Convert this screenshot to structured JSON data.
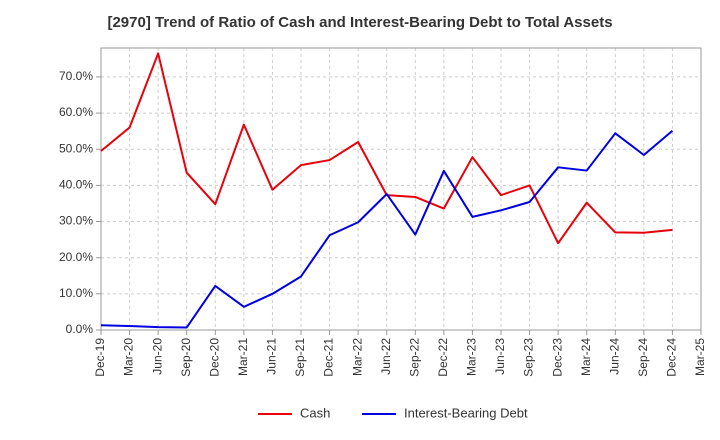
{
  "chart_data": {
    "type": "line",
    "title": "[2970]  Trend of Ratio of Cash and Interest-Bearing Debt to Total Assets",
    "x": [
      "Dec-19",
      "Mar-20",
      "Jun-20",
      "Sep-20",
      "Dec-20",
      "Mar-21",
      "Jun-21",
      "Sep-21",
      "Dec-21",
      "Mar-22",
      "Jun-22",
      "Sep-22",
      "Dec-22",
      "Mar-23",
      "Jun-23",
      "Sep-23",
      "Dec-23",
      "Mar-24",
      "Jun-24",
      "Sep-24",
      "Dec-24",
      "Mar-25"
    ],
    "xticks": [
      "Dec-19",
      "Mar-20",
      "Jun-20",
      "Sep-20",
      "Dec-20",
      "Mar-21",
      "Jun-21",
      "Sep-21",
      "Dec-21",
      "Mar-22",
      "Jun-22",
      "Sep-22",
      "Dec-22",
      "Mar-23",
      "Jun-23",
      "Sep-23",
      "Dec-23",
      "Mar-24",
      "Jun-24",
      "Sep-24",
      "Dec-24",
      "Mar-25"
    ],
    "yticks": [
      "0.0%",
      "10.0%",
      "20.0%",
      "30.0%",
      "40.0%",
      "50.0%",
      "60.0%",
      "70.0%"
    ],
    "ylim": [
      0,
      78
    ],
    "grid": true,
    "legend_position": "bottom",
    "series": [
      {
        "name": "Cash",
        "color": "#e8000b",
        "values": [
          49.5,
          56.0,
          76.5,
          43.5,
          34.8,
          56.8,
          38.8,
          45.6,
          47.0,
          52.0,
          37.3,
          36.8,
          33.6,
          47.8,
          37.3,
          40.0,
          24.0,
          35.2,
          27.0,
          26.9,
          27.7,
          null
        ]
      },
      {
        "name": "Interest-Bearing Debt",
        "color": "#0000e0",
        "values": [
          1.3,
          1.1,
          0.8,
          0.7,
          12.2,
          6.4,
          10.0,
          14.8,
          26.2,
          29.8,
          37.6,
          26.4,
          44.0,
          31.3,
          33.1,
          35.4,
          45.0,
          44.1,
          54.4,
          48.4,
          55.1,
          null
        ]
      }
    ]
  }
}
